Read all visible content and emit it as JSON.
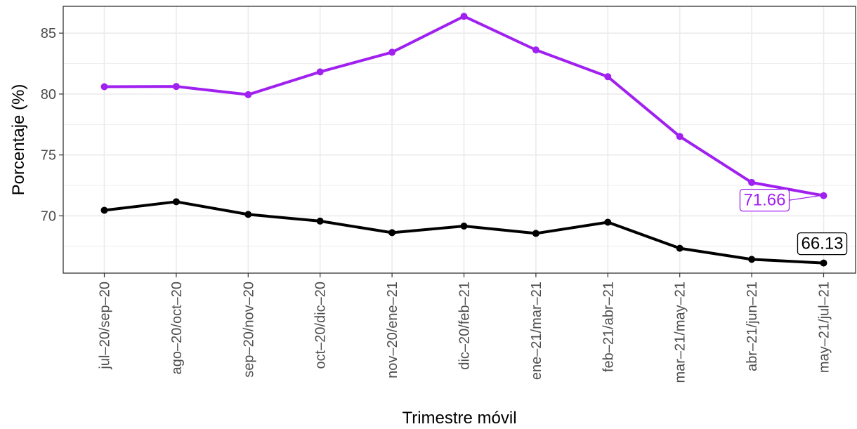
{
  "chart_data": {
    "type": "line",
    "title": "",
    "xlabel": "Trimestre móvil",
    "ylabel": "Porcentaje (%)",
    "categories": [
      "jul–20/sep–20",
      "ago–20/oct–20",
      "sep–20/nov–20",
      "oct–20/dic–20",
      "nov–20/ene–21",
      "dic–20/feb–21",
      "ene–21/mar–21",
      "feb–21/abr–21",
      "mar–21/may–21",
      "abr–21/jun–21",
      "may–21/jul–21"
    ],
    "ylim": [
      65.3,
      87.2
    ],
    "yticks": [
      "70",
      "75",
      "80",
      "85"
    ],
    "grid": true,
    "legend": "none",
    "series": [
      {
        "color": "#a020f0",
        "values": [
          80.6,
          80.62,
          79.95,
          81.82,
          83.43,
          86.38,
          83.62,
          81.42,
          76.52,
          72.74,
          71.66
        ],
        "end_label": "71.66"
      },
      {
        "color": "#000000",
        "values": [
          70.46,
          71.16,
          70.12,
          69.57,
          68.62,
          69.16,
          68.56,
          69.48,
          67.34,
          66.43,
          66.13
        ],
        "end_label": "66.13"
      }
    ]
  }
}
